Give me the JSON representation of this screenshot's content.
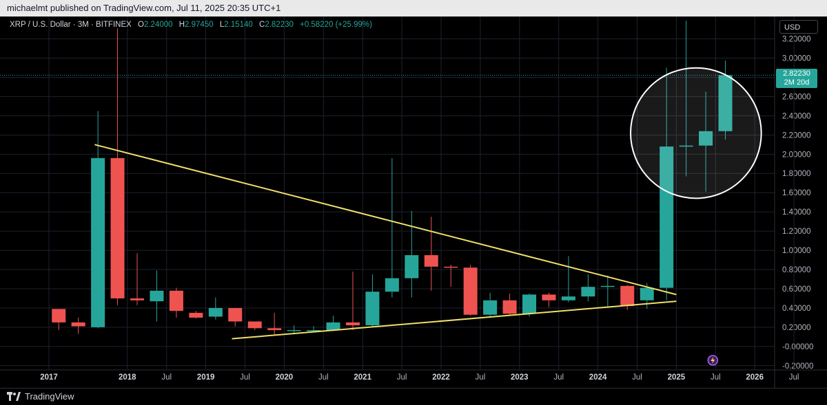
{
  "header": {
    "published_text": "michaelmt published on TradingView.com, Jul 11, 2025 20:35 UTC+1"
  },
  "legend": {
    "symbol": "XRP / U.S. Dollar · 3M · BITFINEX",
    "o_label": "O",
    "o_value": "2.24000",
    "h_label": "H",
    "h_value": "2.97450",
    "l_label": "L",
    "l_value": "2.15140",
    "c_label": "C",
    "c_value": "2.82230",
    "change": "+0.58220 (+25.99%)"
  },
  "price_scale": {
    "currency": "USD",
    "last_price": "2.82230",
    "countdown": "2M 20d"
  },
  "footer": {
    "brand": "TradingView"
  },
  "colors": {
    "up": "#26a69a",
    "down": "#ef5350",
    "trendline": "#f0e06a",
    "grid": "#1e2230",
    "highlight_circle": "#ffffff"
  },
  "icons": {
    "logo": "tradingview-logo-icon",
    "event": "lightning-event-icon"
  },
  "chart_data": {
    "type": "candlestick",
    "title": "XRP / U.S. Dollar · 3M · BITFINEX",
    "interval": "3M",
    "ylim": [
      -0.23,
      3.39
    ],
    "y_ticks": [
      "3.20000",
      "3.00000",
      "2.80000",
      "2.60000",
      "2.40000",
      "2.20000",
      "2.00000",
      "1.80000",
      "1.60000",
      "1.40000",
      "1.20000",
      "1.00000",
      "0.80000",
      "0.60000",
      "0.40000",
      "0.20000",
      "-0.00000",
      "-0.20000"
    ],
    "x_ticks": [
      "2017",
      "2018",
      "Jul",
      "2019",
      "Jul",
      "2020",
      "Jul",
      "2021",
      "Jul",
      "2022",
      "Jul",
      "2023",
      "Jul",
      "2024",
      "Jul",
      "2025",
      "Jul",
      "2026",
      "Jul"
    ],
    "x_tick_dates": [
      "2017-01",
      "2018-01",
      "2018-07",
      "2019-01",
      "2019-07",
      "2020-01",
      "2020-07",
      "2021-01",
      "2021-07",
      "2022-01",
      "2022-07",
      "2023-01",
      "2023-07",
      "2024-01",
      "2024-07",
      "2025-01",
      "2025-07",
      "2026-01",
      "2026-07"
    ],
    "candles": [
      {
        "date": "2017-01",
        "o": 0.39,
        "h": 0.39,
        "l": 0.17,
        "c": 0.25
      },
      {
        "date": "2017-04",
        "o": 0.25,
        "h": 0.3,
        "l": 0.13,
        "c": 0.21
      },
      {
        "date": "2017-07",
        "o": 0.2,
        "h": 2.45,
        "l": 0.19,
        "c": 1.96
      },
      {
        "date": "2017-10",
        "o": 1.96,
        "h": 3.31,
        "l": 0.43,
        "c": 0.5
      },
      {
        "date": "2018-01",
        "o": 0.5,
        "h": 0.97,
        "l": 0.43,
        "c": 0.48
      },
      {
        "date": "2018-04",
        "o": 0.47,
        "h": 0.79,
        "l": 0.26,
        "c": 0.58
      },
      {
        "date": "2018-07",
        "o": 0.58,
        "h": 0.61,
        "l": 0.3,
        "c": 0.37
      },
      {
        "date": "2018-10",
        "o": 0.35,
        "h": 0.37,
        "l": 0.29,
        "c": 0.3
      },
      {
        "date": "2019-01",
        "o": 0.31,
        "h": 0.51,
        "l": 0.28,
        "c": 0.4
      },
      {
        "date": "2019-04",
        "o": 0.4,
        "h": 0.4,
        "l": 0.21,
        "c": 0.26
      },
      {
        "date": "2019-07",
        "o": 0.26,
        "h": 0.26,
        "l": 0.17,
        "c": 0.19
      },
      {
        "date": "2019-10",
        "o": 0.19,
        "h": 0.35,
        "l": 0.12,
        "c": 0.17
      },
      {
        "date": "2020-01",
        "o": 0.17,
        "h": 0.22,
        "l": 0.14,
        "c": 0.17
      },
      {
        "date": "2020-04",
        "o": 0.17,
        "h": 0.21,
        "l": 0.15,
        "c": 0.17
      },
      {
        "date": "2020-07",
        "o": 0.17,
        "h": 0.32,
        "l": 0.16,
        "c": 0.25
      },
      {
        "date": "2020-10",
        "o": 0.25,
        "h": 0.78,
        "l": 0.17,
        "c": 0.22
      },
      {
        "date": "2021-01",
        "o": 0.22,
        "h": 0.75,
        "l": 0.21,
        "c": 0.57
      },
      {
        "date": "2021-04",
        "o": 0.57,
        "h": 1.96,
        "l": 0.51,
        "c": 0.71
      },
      {
        "date": "2021-07",
        "o": 0.71,
        "h": 1.41,
        "l": 0.51,
        "c": 0.95
      },
      {
        "date": "2021-10",
        "o": 0.95,
        "h": 1.35,
        "l": 0.58,
        "c": 0.83
      },
      {
        "date": "2022-01",
        "o": 0.83,
        "h": 0.85,
        "l": 0.62,
        "c": 0.82
      },
      {
        "date": "2022-04",
        "o": 0.82,
        "h": 0.85,
        "l": 0.32,
        "c": 0.33
      },
      {
        "date": "2022-07",
        "o": 0.33,
        "h": 0.56,
        "l": 0.31,
        "c": 0.48
      },
      {
        "date": "2022-10",
        "o": 0.48,
        "h": 0.55,
        "l": 0.33,
        "c": 0.34
      },
      {
        "date": "2023-01",
        "o": 0.34,
        "h": 0.55,
        "l": 0.31,
        "c": 0.54
      },
      {
        "date": "2023-04",
        "o": 0.54,
        "h": 0.56,
        "l": 0.41,
        "c": 0.48
      },
      {
        "date": "2023-07",
        "o": 0.48,
        "h": 0.94,
        "l": 0.46,
        "c": 0.52
      },
      {
        "date": "2023-10",
        "o": 0.52,
        "h": 0.75,
        "l": 0.47,
        "c": 0.62
      },
      {
        "date": "2024-01",
        "o": 0.62,
        "h": 0.74,
        "l": 0.41,
        "c": 0.63
      },
      {
        "date": "2024-04",
        "o": 0.63,
        "h": 0.64,
        "l": 0.38,
        "c": 0.42
      },
      {
        "date": "2024-07",
        "o": 0.48,
        "h": 0.66,
        "l": 0.39,
        "c": 0.61
      },
      {
        "date": "2024-10",
        "o": 0.61,
        "h": 2.9,
        "l": 0.48,
        "c": 2.08
      },
      {
        "date": "2025-01",
        "o": 2.08,
        "h": 3.39,
        "l": 1.77,
        "c": 2.09
      },
      {
        "date": "2025-04",
        "o": 2.09,
        "h": 2.65,
        "l": 1.61,
        "c": 2.24
      },
      {
        "date": "2025-07",
        "o": 2.24,
        "h": 2.9745,
        "l": 2.1514,
        "c": 2.8223
      }
    ],
    "trendlines": [
      {
        "name": "upper",
        "points": [
          {
            "date": "2017-08",
            "y": 2.1
          },
          {
            "date": "2025-01",
            "y": 0.54
          }
        ]
      },
      {
        "name": "lower",
        "points": [
          {
            "date": "2019-05",
            "y": 0.08
          },
          {
            "date": "2025-01",
            "y": 0.47
          }
        ]
      }
    ],
    "highlight_circle": {
      "center_date": "2025-04",
      "center_y": 2.22,
      "radius_months": 10
    },
    "last_price_line": 2.8223
  }
}
